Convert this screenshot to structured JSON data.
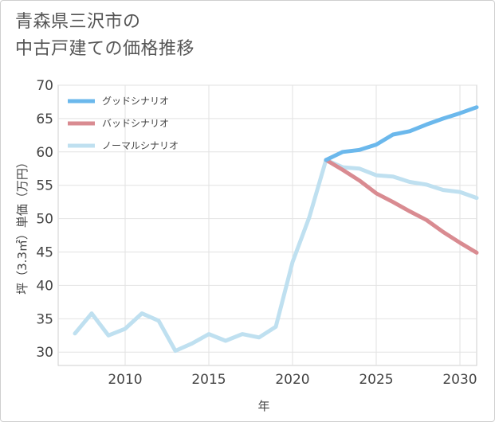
{
  "title": {
    "line1": "青森県三沢市の",
    "line2": "中古戸建ての価格推移"
  },
  "chart_data": {
    "type": "line",
    "xlabel": "年",
    "ylabel": "坪（3.3㎡）単価（万円）",
    "xlim": [
      2006,
      2031
    ],
    "ylim": [
      28,
      70
    ],
    "x_ticks": [
      2010,
      2015,
      2020,
      2025,
      2030
    ],
    "y_ticks": [
      30,
      35,
      40,
      45,
      50,
      55,
      60,
      65,
      70
    ],
    "grid": true,
    "legend_position": "top-left",
    "series": [
      {
        "name": "グッドシナリオ",
        "color": "#6bb8ec",
        "x": [
          2022,
          2023,
          2024,
          2025,
          2026,
          2027,
          2028,
          2029,
          2030,
          2031
        ],
        "values": [
          58.8,
          60.0,
          60.3,
          61.1,
          62.6,
          63.1,
          64.1,
          65.0,
          65.8,
          66.7
        ]
      },
      {
        "name": "バッドシナリオ",
        "color": "#d98b91",
        "x": [
          2022,
          2023,
          2024,
          2025,
          2026,
          2027,
          2028,
          2029,
          2030,
          2031
        ],
        "values": [
          58.8,
          57.3,
          55.7,
          53.8,
          52.5,
          51.1,
          49.8,
          48.0,
          46.4,
          44.9
        ]
      },
      {
        "name": "ノーマルシナリオ",
        "color": "#bfe0f0",
        "x": [
          2007,
          2008,
          2009,
          2010,
          2011,
          2012,
          2013,
          2014,
          2015,
          2016,
          2017,
          2018,
          2019,
          2020,
          2021,
          2022,
          2023,
          2024,
          2025,
          2026,
          2027,
          2028,
          2029,
          2030,
          2031
        ],
        "values": [
          32.8,
          35.8,
          32.5,
          33.5,
          35.8,
          34.7,
          30.2,
          31.3,
          32.7,
          31.7,
          32.7,
          32.2,
          33.8,
          43.5,
          50.2,
          58.8,
          57.7,
          57.5,
          56.5,
          56.3,
          55.5,
          55.1,
          54.3,
          54.0,
          53.1
        ]
      }
    ]
  }
}
